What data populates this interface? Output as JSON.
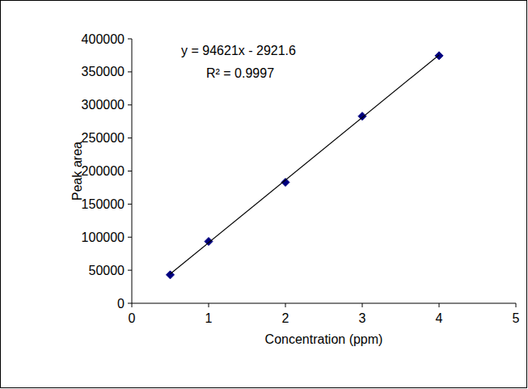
{
  "chart_data": {
    "type": "scatter",
    "x_label": "Concentration (ppm)",
    "y_label": "Peak area",
    "annotations": [
      "y = 94621x - 2921.6",
      "R² = 0.9997"
    ],
    "x": [
      0.5,
      1,
      2,
      3,
      4
    ],
    "series": [
      {
        "type": "scatter",
        "marker": "diamond",
        "color": "#000080",
        "values": [
          43000,
          93500,
          183000,
          283000,
          374500
        ]
      },
      {
        "type": "line",
        "line_style": "solid",
        "color": "#000000",
        "x": [
          0.5,
          4
        ],
        "values": [
          44389,
          375562
        ]
      }
    ],
    "xlim": [
      0,
      5
    ],
    "xticks": [
      0,
      1,
      2,
      3,
      4,
      5
    ],
    "ylim": [
      0,
      400000
    ],
    "yticks": [
      0,
      50000,
      100000,
      150000,
      200000,
      250000,
      300000,
      350000,
      400000
    ],
    "grid": false
  }
}
